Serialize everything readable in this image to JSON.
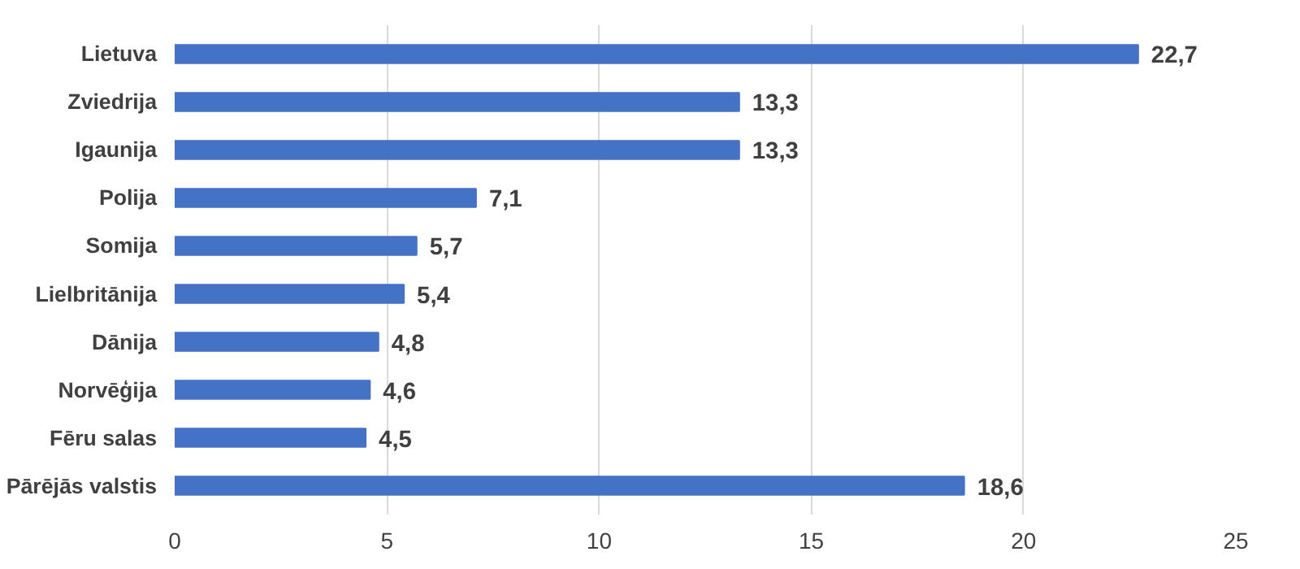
{
  "chart_data": {
    "type": "bar",
    "orientation": "horizontal",
    "categories": [
      "Lietuva",
      "Zviedrija",
      "Igaunija",
      "Polija",
      "Somija",
      "Lielbritānija",
      "Dānija",
      "Norvēģija",
      "Fēru salas",
      "Pārējās valstis"
    ],
    "values": [
      22.7,
      13.3,
      13.3,
      7.1,
      5.7,
      5.4,
      4.8,
      4.6,
      4.5,
      18.6
    ],
    "value_labels": [
      "22,7",
      "13,3",
      "13,3",
      "7,1",
      "5,7",
      "5,4",
      "4,8",
      "4,6",
      "4,5",
      "18,6"
    ],
    "color": "#4472c4",
    "xlim": [
      0,
      25
    ],
    "xticks": [
      0,
      5,
      10,
      15,
      20,
      25
    ],
    "grid": "x"
  }
}
